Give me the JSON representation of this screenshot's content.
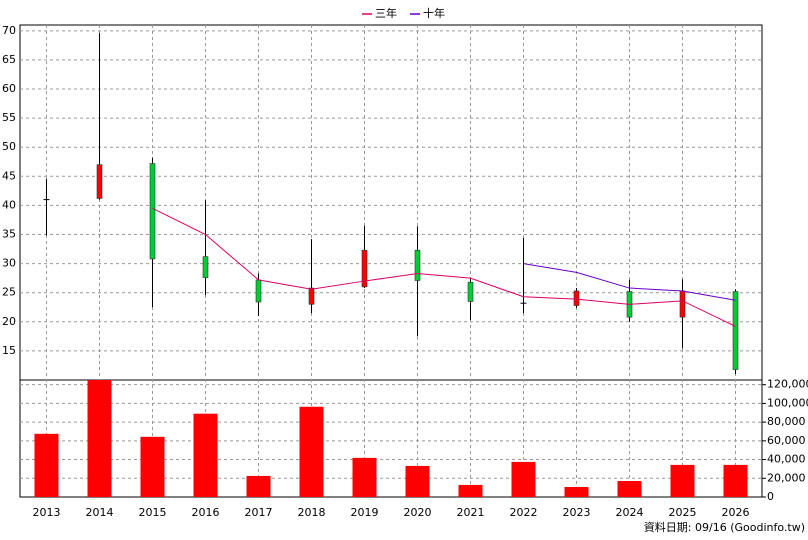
{
  "chart_data": {
    "type": "candlestick",
    "categories": [
      "2013",
      "2014",
      "2015",
      "2016",
      "2017",
      "2018",
      "2019",
      "2020",
      "2021",
      "2022",
      "2023",
      "2024",
      "2025",
      "2026"
    ],
    "ohlc": {
      "open": [
        41,
        41.2,
        47.2,
        31.2,
        27.2,
        23,
        26,
        32.3,
        26.8,
        23.2,
        22.8,
        25.2,
        20.8,
        25.2
      ],
      "high": [
        44.6,
        69.6,
        48.2,
        40.9,
        28.3,
        34.2,
        36.5,
        36.4,
        27.5,
        34.4,
        25.8,
        27.2,
        27.3,
        25.6
      ],
      "low": [
        34.8,
        41,
        22.5,
        24.6,
        21,
        21.5,
        25.8,
        17.5,
        20.3,
        21.5,
        22.4,
        20,
        15.4,
        11
      ],
      "close": [
        41.1,
        47,
        30.8,
        27.6,
        23.4,
        25.8,
        32.3,
        27.1,
        23.5,
        23.3,
        25.3,
        20.8,
        25.3,
        11.8
      ],
      "up_color": "#ff0000",
      "down_color": "#00cc33"
    },
    "ylim": [
      10,
      71
    ],
    "yticks": [
      15,
      20,
      25,
      30,
      35,
      40,
      45,
      50,
      55,
      60,
      65,
      70
    ],
    "grid": true,
    "series": [
      {
        "name": "三年",
        "color": "#dd0066",
        "values": [
          null,
          null,
          39.5,
          35,
          27.2,
          25.6,
          27,
          28.3,
          27.5,
          24.3,
          23.9,
          23,
          23.6,
          19.2
        ]
      },
      {
        "name": "十年",
        "color": "#6600cc",
        "values": [
          null,
          null,
          null,
          null,
          null,
          null,
          null,
          null,
          null,
          30,
          28.5,
          25.8,
          25.3,
          23.7
        ]
      }
    ],
    "volume": {
      "color": "#ff0000",
      "values": [
        67500,
        125000,
        64300,
        89000,
        22500,
        96400,
        41800,
        33200,
        12900,
        37500,
        10700,
        17100,
        34300,
        34300
      ],
      "ylim": [
        0,
        125000
      ],
      "yticks": [
        0,
        {
          "value": 20000,
          "label": "20,000"
        },
        {
          "value": 40000,
          "label": "40,000"
        },
        {
          "value": 60000,
          "label": "60,000"
        },
        {
          "value": 80000,
          "label": "80,000"
        },
        {
          "value": 100000,
          "label": "100,000"
        },
        {
          "value": 120000,
          "label": "120,000"
        }
      ]
    },
    "footnote": "資料日期: 09/16  (Goodinfo.tw)"
  }
}
